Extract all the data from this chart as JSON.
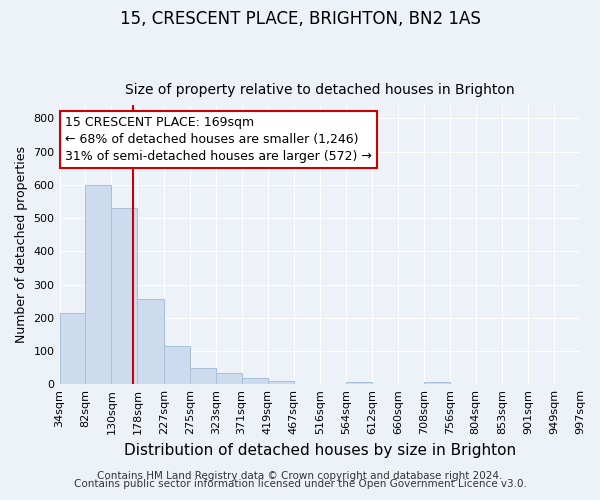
{
  "title": "15, CRESCENT PLACE, BRIGHTON, BN2 1AS",
  "subtitle": "Size of property relative to detached houses in Brighton",
  "xlabel": "Distribution of detached houses by size in Brighton",
  "ylabel": "Number of detached properties",
  "footer_lines": [
    "Contains HM Land Registry data © Crown copyright and database right 2024.",
    "Contains public sector information licensed under the Open Government Licence v3.0."
  ],
  "bin_edges": [
    34,
    82,
    130,
    178,
    227,
    275,
    323,
    371,
    419,
    467,
    516,
    564,
    612,
    660,
    708,
    756,
    804,
    853,
    901,
    949,
    997
  ],
  "bin_labels": [
    "34sqm",
    "82sqm",
    "130sqm",
    "178sqm",
    "227sqm",
    "275sqm",
    "323sqm",
    "371sqm",
    "419sqm",
    "467sqm",
    "516sqm",
    "564sqm",
    "612sqm",
    "660sqm",
    "708sqm",
    "756sqm",
    "804sqm",
    "853sqm",
    "901sqm",
    "949sqm",
    "997sqm"
  ],
  "bar_heights": [
    215,
    600,
    530,
    255,
    115,
    50,
    33,
    20,
    10,
    0,
    0,
    8,
    0,
    0,
    8,
    0,
    0,
    0,
    0,
    0
  ],
  "bar_color": "#ccdcee",
  "bar_edgecolor": "#a8c0d8",
  "vline_x": 169,
  "vline_color": "#cc0000",
  "ylim": [
    0,
    840
  ],
  "yticks": [
    0,
    100,
    200,
    300,
    400,
    500,
    600,
    700,
    800
  ],
  "annotation_title": "15 CRESCENT PLACE: 169sqm",
  "annotation_line2": "← 68% of detached houses are smaller (1,246)",
  "annotation_line3": "31% of semi-detached houses are larger (572) →",
  "annotation_box_color": "#ffffff",
  "annotation_box_edgecolor": "#cc0000",
  "background_color": "#edf2f9",
  "grid_color": "#ffffff",
  "title_fontsize": 12,
  "subtitle_fontsize": 10,
  "xlabel_fontsize": 11,
  "ylabel_fontsize": 9,
  "tick_fontsize": 8,
  "annotation_fontsize": 9,
  "footer_fontsize": 7.5
}
